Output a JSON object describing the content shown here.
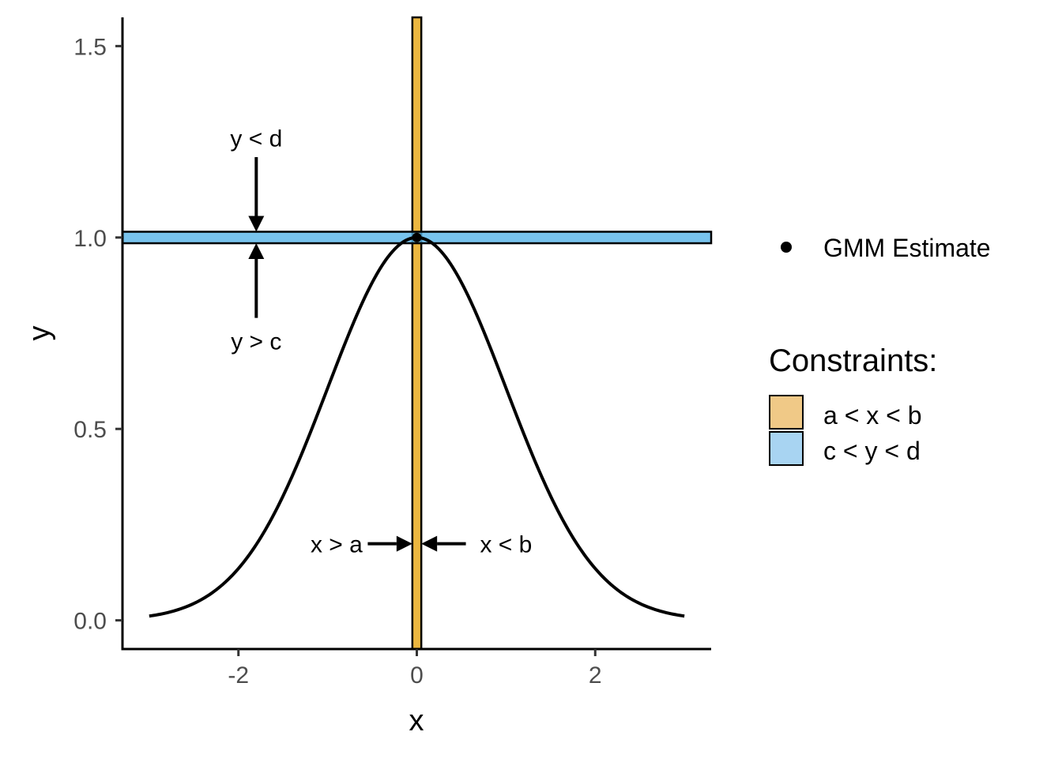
{
  "chart_data": {
    "type": "line",
    "xlabel": "x",
    "ylabel": "y",
    "xlim": [
      -3.3,
      3.3
    ],
    "ylim": [
      -0.075,
      1.575
    ],
    "x_ticks": [
      {
        "value": -2,
        "label": "-2"
      },
      {
        "value": 0,
        "label": "0"
      },
      {
        "value": 2,
        "label": "2"
      }
    ],
    "y_ticks": [
      {
        "value": 0.0,
        "label": "0.0"
      },
      {
        "value": 0.5,
        "label": "0.5"
      },
      {
        "value": 1.0,
        "label": "1.0"
      },
      {
        "value": 1.5,
        "label": "1.5"
      }
    ],
    "grid": false,
    "curve": {
      "description_function": "exp(-x^2/2)",
      "x": [
        -3.0,
        -2.75,
        -2.5,
        -2.25,
        -2.0,
        -1.75,
        -1.5,
        -1.25,
        -1.0,
        -0.75,
        -0.5,
        -0.25,
        0.0,
        0.25,
        0.5,
        0.75,
        1.0,
        1.25,
        1.5,
        1.75,
        2.0,
        2.25,
        2.5,
        2.75,
        3.0
      ],
      "y": [
        0.011,
        0.023,
        0.044,
        0.08,
        0.135,
        0.216,
        0.325,
        0.458,
        0.607,
        0.755,
        0.882,
        0.969,
        1.0,
        0.969,
        0.882,
        0.755,
        0.607,
        0.458,
        0.325,
        0.216,
        0.135,
        0.08,
        0.044,
        0.023,
        0.011
      ],
      "color": "#000000"
    },
    "gmm_estimate": {
      "x": 0.0,
      "y": 1.0,
      "label": "GMM Estimate",
      "color": "#000000"
    },
    "constraints": {
      "title": "Constraints:",
      "x_band": {
        "label": "a < x < b",
        "lower": -0.05,
        "upper": 0.05,
        "color": "#E69F00",
        "legend_color": "#F0C987"
      },
      "y_band": {
        "label": "c < y < d",
        "lower": 0.985,
        "upper": 1.015,
        "color": "#56B4E9",
        "legend_color": "#A8D4F2"
      }
    },
    "annotations": [
      {
        "text": "y < d",
        "x": -1.8,
        "y": 1.26,
        "arrow_from": [
          -1.8,
          1.21
        ],
        "arrow_to": [
          -1.8,
          1.015
        ]
      },
      {
        "text": "y > c",
        "x": -1.8,
        "y": 0.73,
        "arrow_from": [
          -1.8,
          0.79
        ],
        "arrow_to": [
          -1.8,
          0.985
        ]
      },
      {
        "text": "x > a",
        "x": -0.9,
        "y": 0.2,
        "arrow_from": [
          -0.55,
          0.2
        ],
        "arrow_to": [
          -0.05,
          0.2
        ]
      },
      {
        "text": "x < b",
        "x": 1.0,
        "y": 0.2,
        "arrow_from": [
          0.55,
          0.2
        ],
        "arrow_to": [
          0.05,
          0.2
        ]
      }
    ]
  }
}
